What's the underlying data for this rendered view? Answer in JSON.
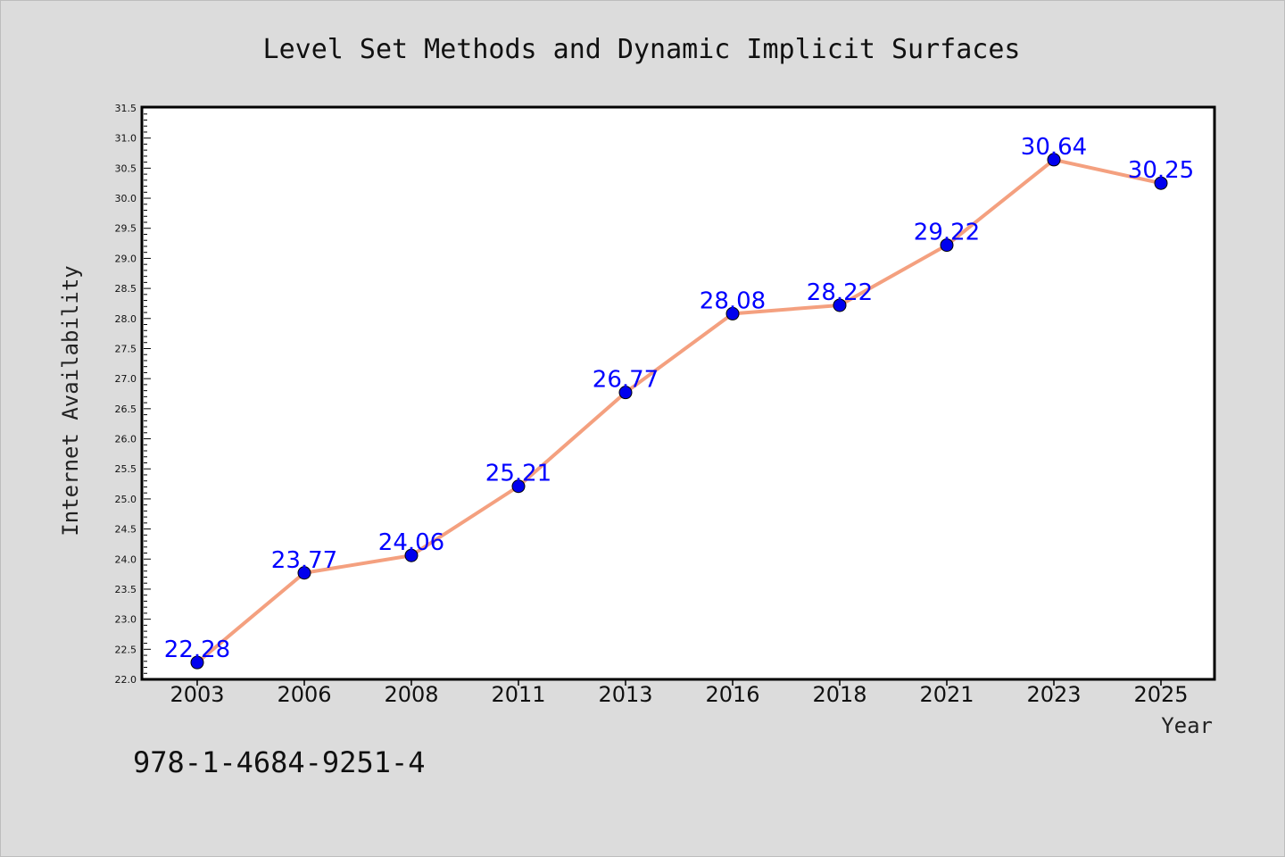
{
  "chart_data": {
    "type": "line",
    "title": "Level Set Methods and Dynamic Implicit Surfaces",
    "xlabel": "Year",
    "ylabel": "Internet Availability",
    "categories": [
      "2003",
      "2006",
      "2008",
      "2011",
      "2013",
      "2016",
      "2018",
      "2021",
      "2023",
      "2025"
    ],
    "series": [
      {
        "values": [
          22.28,
          23.77,
          24.06,
          25.21,
          26.77,
          28.08,
          28.22,
          29.22,
          30.64,
          30.25
        ],
        "line_color": "#f4a07f",
        "marker_color": "#0000ee",
        "label_color": "#0000ff"
      }
    ],
    "data_labels": [
      "22.28",
      "23.77",
      "24.06",
      "25.21",
      "26.77",
      "28.08",
      "28.22",
      "29.22",
      "30.64",
      "30.25"
    ],
    "ylim": [
      22.0,
      31.5
    ],
    "yticks": [
      "22.0",
      "22.5",
      "23.0",
      "23.5",
      "24.0",
      "24.5",
      "25.0",
      "25.5",
      "26.0",
      "26.5",
      "27.0",
      "27.5",
      "28.0",
      "28.5",
      "29.0",
      "29.5",
      "30.0",
      "30.5",
      "31.0",
      "31.5"
    ],
    "grid": false,
    "legend": "none"
  },
  "footer": {
    "isbn": "978-1-4684-9251-4"
  },
  "colors": {
    "background": "#dcdcdc",
    "plot_background": "#ffffff",
    "axis": "#000000"
  }
}
